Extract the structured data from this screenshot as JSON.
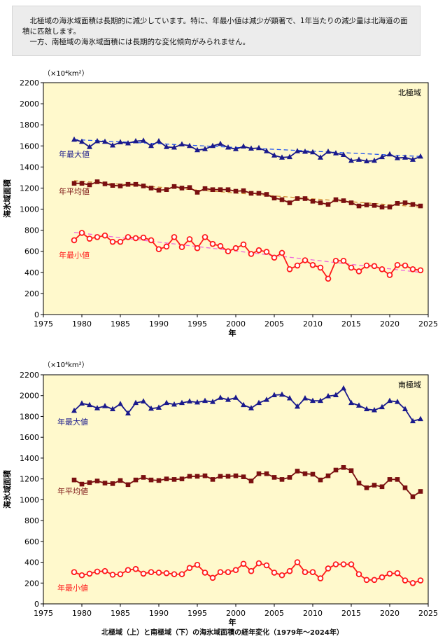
{
  "note": {
    "para1": "北極域の海氷域面積は長期的に減少しています。特に、年最小値は減少が顕著で、1年当たりの減少量は北海道の面積に匹敵します。",
    "para2": "一方、南極域の海氷域面積には長期的な変化傾向がみられません。"
  },
  "caption": "北極域（上）と南極域（下）の海氷域面積の経年変化（1979年～2024年）",
  "chart_data": [
    {
      "type": "line",
      "title": "北極域",
      "unit": "（×10⁴km²）",
      "xlabel": "年",
      "ylabel": "海氷域面積",
      "xlim": [
        1975,
        2025
      ],
      "ylim": [
        0,
        2200
      ],
      "xticks": [
        1975,
        1980,
        1985,
        1990,
        1995,
        2000,
        2005,
        2010,
        2015,
        2020,
        2025
      ],
      "yticks": [
        0,
        200,
        400,
        600,
        800,
        1000,
        1200,
        1400,
        1600,
        1800,
        2000,
        2200
      ],
      "x": [
        1979,
        1980,
        1981,
        1982,
        1983,
        1984,
        1985,
        1986,
        1987,
        1988,
        1989,
        1990,
        1991,
        1992,
        1993,
        1994,
        1995,
        1996,
        1997,
        1998,
        1999,
        2000,
        2001,
        2002,
        2003,
        2004,
        2005,
        2006,
        2007,
        2008,
        2009,
        2010,
        2011,
        2012,
        2013,
        2014,
        2015,
        2016,
        2017,
        2018,
        2019,
        2020,
        2021,
        2022,
        2023,
        2024
      ],
      "series": [
        {
          "name": "年最大値",
          "color": "#1a1a8c",
          "marker": "triangle",
          "values": [
            1660,
            1640,
            1590,
            1645,
            1640,
            1605,
            1635,
            1625,
            1645,
            1650,
            1600,
            1645,
            1590,
            1585,
            1615,
            1600,
            1560,
            1570,
            1600,
            1620,
            1585,
            1570,
            1595,
            1575,
            1580,
            1550,
            1510,
            1490,
            1495,
            1550,
            1545,
            1540,
            1490,
            1545,
            1530,
            1515,
            1460,
            1470,
            1455,
            1460,
            1495,
            1520,
            1485,
            1490,
            1470,
            1500
          ],
          "trend": [
            1660,
            1500
          ],
          "trend_color": "#2255ee"
        },
        {
          "name": "年平均値",
          "color": "#7a1010",
          "marker": "square",
          "values": [
            1245,
            1245,
            1230,
            1260,
            1240,
            1225,
            1220,
            1235,
            1235,
            1220,
            1200,
            1180,
            1185,
            1215,
            1200,
            1205,
            1160,
            1195,
            1185,
            1185,
            1185,
            1170,
            1175,
            1150,
            1150,
            1140,
            1105,
            1090,
            1060,
            1100,
            1100,
            1075,
            1060,
            1045,
            1090,
            1080,
            1060,
            1030,
            1040,
            1035,
            1020,
            1020,
            1055,
            1060,
            1045,
            1030
          ],
          "trend": [
            1270,
            1020
          ],
          "trend_color": "#d08a30"
        },
        {
          "name": "年最小値",
          "color": "#ff1a1a",
          "marker": "circle",
          "values": [
            705,
            775,
            720,
            735,
            750,
            690,
            690,
            735,
            725,
            730,
            705,
            620,
            645,
            735,
            640,
            715,
            630,
            735,
            670,
            650,
            600,
            630,
            665,
            575,
            610,
            595,
            540,
            585,
            430,
            465,
            515,
            470,
            445,
            340,
            510,
            510,
            445,
            410,
            465,
            460,
            430,
            375,
            470,
            465,
            430,
            420
          ],
          "trend": [
            780,
            400
          ],
          "trend_color": "#ee66dd"
        }
      ]
    },
    {
      "type": "line",
      "title": "南極域",
      "unit": "（×10⁴km²）",
      "xlabel": "年",
      "ylabel": "海氷域面積",
      "xlim": [
        1975,
        2025
      ],
      "ylim": [
        0,
        2200
      ],
      "xticks": [
        1975,
        1980,
        1985,
        1990,
        1995,
        2000,
        2005,
        2010,
        2015,
        2020,
        2025
      ],
      "yticks": [
        0,
        200,
        400,
        600,
        800,
        1000,
        1200,
        1400,
        1600,
        1800,
        2000,
        2200
      ],
      "x": [
        1979,
        1980,
        1981,
        1982,
        1983,
        1984,
        1985,
        1986,
        1987,
        1988,
        1989,
        1990,
        1991,
        1992,
        1993,
        1994,
        1995,
        1996,
        1997,
        1998,
        1999,
        2000,
        2001,
        2002,
        2003,
        2004,
        2005,
        2006,
        2007,
        2008,
        2009,
        2010,
        2011,
        2012,
        2013,
        2014,
        2015,
        2016,
        2017,
        2018,
        2019,
        2020,
        2021,
        2022,
        2023,
        2024
      ],
      "series": [
        {
          "name": "年最大値",
          "color": "#1a1a8c",
          "marker": "triangle",
          "values": [
            1855,
            1925,
            1910,
            1880,
            1900,
            1870,
            1920,
            1830,
            1930,
            1945,
            1875,
            1885,
            1930,
            1915,
            1930,
            1945,
            1935,
            1950,
            1940,
            1980,
            1960,
            1980,
            1910,
            1880,
            1930,
            1960,
            2005,
            2010,
            1975,
            1895,
            1975,
            1950,
            1950,
            1995,
            2005,
            2070,
            1930,
            1905,
            1870,
            1860,
            1890,
            1950,
            1940,
            1870,
            1755,
            1775
          ]
        },
        {
          "name": "年平均値",
          "color": "#7a1010",
          "marker": "square",
          "values": [
            1190,
            1150,
            1165,
            1180,
            1160,
            1155,
            1185,
            1145,
            1190,
            1215,
            1190,
            1185,
            1200,
            1195,
            1200,
            1225,
            1225,
            1230,
            1195,
            1225,
            1225,
            1230,
            1220,
            1180,
            1250,
            1250,
            1215,
            1195,
            1215,
            1275,
            1250,
            1245,
            1190,
            1230,
            1285,
            1310,
            1280,
            1160,
            1115,
            1140,
            1125,
            1195,
            1195,
            1115,
            1030,
            1080
          ]
        },
        {
          "name": "年最小値",
          "color": "#ff1a1a",
          "marker": "circle",
          "values": [
            305,
            275,
            290,
            310,
            315,
            280,
            285,
            325,
            335,
            290,
            305,
            300,
            295,
            285,
            285,
            345,
            375,
            300,
            250,
            305,
            305,
            325,
            385,
            315,
            390,
            370,
            300,
            275,
            315,
            400,
            305,
            305,
            245,
            340,
            380,
            380,
            380,
            285,
            230,
            230,
            255,
            290,
            295,
            225,
            200,
            225
          ]
        }
      ]
    }
  ]
}
